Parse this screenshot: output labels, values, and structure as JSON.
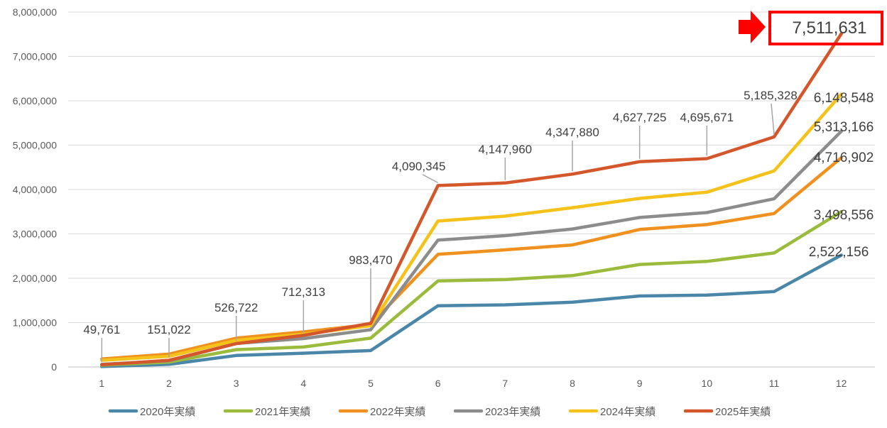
{
  "chart_data": {
    "type": "line",
    "title": "",
    "xlabel": "",
    "ylabel": "",
    "x": [
      "1",
      "2",
      "3",
      "4",
      "5",
      "6",
      "7",
      "8",
      "9",
      "10",
      "11",
      "12"
    ],
    "ylim": [
      0,
      8000000
    ],
    "yticks": [
      "0",
      "1,000,000",
      "2,000,000",
      "3,000,000",
      "4,000,000",
      "5,000,000",
      "6,000,000",
      "7,000,000",
      "8,000,000"
    ],
    "grid": "horizontal",
    "legend_position": "bottom",
    "series": [
      {
        "name": "2020年実績",
        "color": "#4A86A8",
        "values": [
          10000,
          60000,
          260000,
          310000,
          370000,
          1380000,
          1400000,
          1460000,
          1600000,
          1620000,
          1700000,
          2522156
        ]
      },
      {
        "name": "2021年実績",
        "color": "#9BBB3C",
        "values": [
          40000,
          110000,
          390000,
          450000,
          650000,
          1940000,
          1970000,
          2060000,
          2310000,
          2380000,
          2570000,
          3498556
        ]
      },
      {
        "name": "2022年実績",
        "color": "#F0901E",
        "values": [
          180000,
          290000,
          650000,
          790000,
          960000,
          2540000,
          2640000,
          2750000,
          3100000,
          3210000,
          3460000,
          4716902
        ]
      },
      {
        "name": "2023年実績",
        "color": "#8C8C8C",
        "values": [
          60000,
          140000,
          530000,
          640000,
          840000,
          2860000,
          2960000,
          3110000,
          3370000,
          3480000,
          3790000,
          5313166
        ]
      },
      {
        "name": "2024年実績",
        "color": "#F5C21A",
        "values": [
          150000,
          240000,
          600000,
          740000,
          930000,
          3290000,
          3400000,
          3590000,
          3800000,
          3940000,
          4420000,
          6148548
        ]
      },
      {
        "name": "2025年実績",
        "color": "#D4572C",
        "values": [
          49761,
          151022,
          526722,
          712313,
          983470,
          4090345,
          4147960,
          4347880,
          4627725,
          4695671,
          5185328,
          7511631
        ]
      }
    ],
    "labels_2025": [
      "49,761",
      "151,022",
      "526,722",
      "712,313",
      "983,470",
      "4,090,345",
      "4,147,960",
      "4,347,880",
      "4,627,725",
      "4,695,671",
      "5,185,328"
    ],
    "end_labels": [
      {
        "series": "2025年実績",
        "text": "7,511,631",
        "highlighted": true
      },
      {
        "series": "2024年実績",
        "text": "6,148,548"
      },
      {
        "series": "2023年実績",
        "text": "5,313,166"
      },
      {
        "series": "2022年実績",
        "text": "4,716,902"
      },
      {
        "series": "2021年実績",
        "text": "3,498,556"
      },
      {
        "series": "2020年実績",
        "text": "2,522,156"
      }
    ],
    "highlight_color": "#FF0000"
  }
}
